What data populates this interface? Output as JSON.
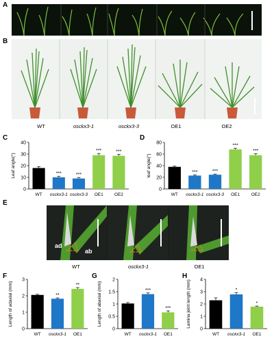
{
  "figure": {
    "panels": {
      "A": "A",
      "B": "B",
      "C": "C",
      "D": "D",
      "E": "E",
      "F": "F",
      "G": "G",
      "H": "H"
    },
    "genotypes_B": [
      "WT",
      "osckx3-1",
      "osckx3-3",
      "OE1",
      "OE2"
    ],
    "genotypes_E": [
      "WT",
      "osckx3-1",
      "OE1"
    ],
    "photo_labels_E": {
      "ad": "ad",
      "ab": "ab"
    },
    "colors": {
      "wt": "#000000",
      "mutant": "#1f77c8",
      "oe": "#8fcf4a",
      "seedling_bg": "#0a120a",
      "stem_green": "#4e9a2e",
      "pot": "#c85a3a"
    }
  },
  "chart_data": [
    {
      "id": "C",
      "type": "bar",
      "categories": [
        "WT",
        "osckx3-1",
        "osckx3-3",
        "OE1",
        "OE2"
      ],
      "values": [
        18,
        10,
        9,
        29,
        28.5
      ],
      "errors": [
        1.2,
        0.8,
        0.9,
        1.5,
        1.3
      ],
      "sig": [
        "",
        "***",
        "***",
        "***",
        "***"
      ],
      "ylabel": "Leaf angle(°)",
      "ylim": [
        0,
        40
      ],
      "yticks": [
        0,
        10,
        20,
        30,
        40
      ]
    },
    {
      "id": "D",
      "type": "bar",
      "categories": [
        "WT",
        "osckx3-1",
        "osckx3-3",
        "OE1",
        "OE2"
      ],
      "values": [
        38,
        23,
        24.5,
        68,
        58
      ],
      "errors": [
        1.2,
        1.0,
        1.1,
        2.0,
        2.5
      ],
      "sig": [
        "",
        "***",
        "***",
        "***",
        "***"
      ],
      "ylabel": "leaf angle(°)",
      "ylim": [
        0,
        80
      ],
      "yticks": [
        0,
        20,
        40,
        60,
        80
      ]
    },
    {
      "id": "F",
      "type": "bar",
      "categories": [
        "WT",
        "osckx3-1",
        "OE1"
      ],
      "values": [
        2.05,
        1.82,
        2.42
      ],
      "errors": [
        0.04,
        0.05,
        0.08
      ],
      "sig": [
        "",
        "**",
        "**"
      ],
      "ylabel": "Length of adaxial (mm)",
      "ylim": [
        0,
        3
      ],
      "yticks": [
        0,
        1,
        2,
        3
      ]
    },
    {
      "id": "G",
      "type": "bar",
      "categories": [
        "WT",
        "osckx3-1",
        "OE1"
      ],
      "values": [
        1.02,
        1.4,
        0.66
      ],
      "errors": [
        0.04,
        0.05,
        0.06
      ],
      "sig": [
        "",
        "***",
        "***"
      ],
      "ylabel": "Length of abaxial (mm)",
      "ylim": [
        0,
        2
      ],
      "yticks": [
        0,
        0.5,
        1,
        1.5,
        2
      ]
    },
    {
      "id": "H",
      "type": "bar",
      "categories": [
        "WT",
        "osckx3-1",
        "OE1"
      ],
      "values": [
        2.3,
        2.78,
        1.78
      ],
      "errors": [
        0.2,
        0.15,
        0.05
      ],
      "sig": [
        "",
        "*",
        "*"
      ],
      "ylabel": "Lamina joint length (mm)",
      "ylim": [
        0,
        4
      ],
      "yticks": [
        0,
        1,
        2,
        3,
        4
      ]
    }
  ]
}
